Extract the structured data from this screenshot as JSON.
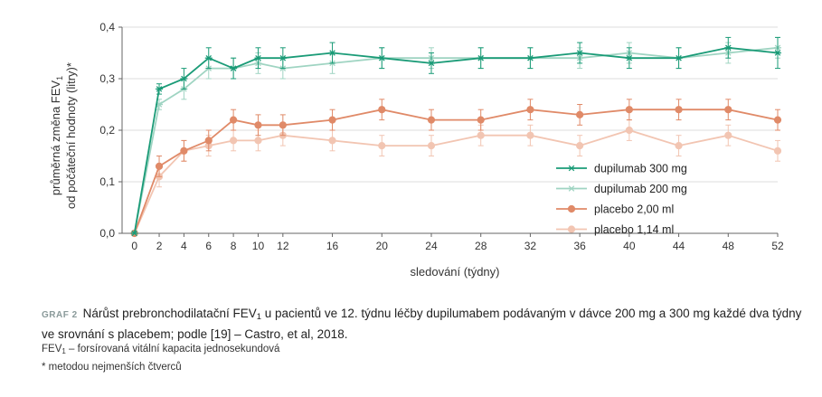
{
  "chart_data": {
    "type": "line",
    "ylabel_line1": "průměrná změna FEV",
    "ylabel_sub": "1",
    "ylabel_line2": "od počáteční hodnoty (litry)*",
    "xlabel": "sledování (týdny)",
    "x_ticks": [
      0,
      2,
      4,
      6,
      8,
      10,
      12,
      16,
      20,
      24,
      28,
      32,
      36,
      40,
      44,
      48,
      52
    ],
    "y_ticks": [
      "0,0",
      "0,1",
      "0,2",
      "0,3",
      "0,4"
    ],
    "xlim": [
      -1,
      52
    ],
    "ylim": [
      0,
      0.4
    ],
    "legend_position": "lower-right",
    "series": [
      {
        "name": "dupilumab 300 mg",
        "color": "#1a9b77",
        "marker": "star",
        "x": [
          0,
          2,
          4,
          6,
          8,
          10,
          12,
          16,
          20,
          24,
          28,
          32,
          36,
          40,
          44,
          48,
          52
        ],
        "y": [
          0.0,
          0.28,
          0.3,
          0.34,
          0.32,
          0.34,
          0.34,
          0.35,
          0.34,
          0.33,
          0.34,
          0.34,
          0.35,
          0.34,
          0.34,
          0.36,
          0.35
        ],
        "err": [
          0,
          0.01,
          0.02,
          0.02,
          0.02,
          0.02,
          0.02,
          0.02,
          0.02,
          0.02,
          0.02,
          0.02,
          0.02,
          0.02,
          0.02,
          0.02,
          0.03
        ]
      },
      {
        "name": "dupilumab 200 mg",
        "color": "#9fd4c2",
        "marker": "star",
        "x": [
          0,
          2,
          4,
          6,
          8,
          10,
          12,
          16,
          20,
          24,
          28,
          32,
          36,
          40,
          44,
          48,
          52
        ],
        "y": [
          0.0,
          0.25,
          0.28,
          0.32,
          0.32,
          0.33,
          0.32,
          0.33,
          0.34,
          0.34,
          0.34,
          0.34,
          0.34,
          0.35,
          0.34,
          0.35,
          0.36
        ],
        "err": [
          0,
          0.01,
          0.02,
          0.02,
          0.02,
          0.02,
          0.02,
          0.02,
          0.02,
          0.02,
          0.02,
          0.02,
          0.02,
          0.02,
          0.02,
          0.02,
          0.02
        ]
      },
      {
        "name": "placebo 2,00 ml",
        "color": "#e08a68",
        "marker": "circle",
        "x": [
          0,
          2,
          4,
          6,
          8,
          10,
          12,
          16,
          20,
          24,
          28,
          32,
          36,
          40,
          44,
          48,
          52
        ],
        "y": [
          0.0,
          0.13,
          0.16,
          0.18,
          0.22,
          0.21,
          0.21,
          0.22,
          0.24,
          0.22,
          0.22,
          0.24,
          0.23,
          0.24,
          0.24,
          0.24,
          0.22
        ],
        "err": [
          0,
          0.02,
          0.02,
          0.02,
          0.02,
          0.02,
          0.02,
          0.02,
          0.02,
          0.02,
          0.02,
          0.02,
          0.02,
          0.02,
          0.02,
          0.02,
          0.02
        ]
      },
      {
        "name": "placebo 1,14 ml",
        "color": "#f2c5b2",
        "marker": "circle",
        "x": [
          0,
          2,
          4,
          6,
          8,
          10,
          12,
          16,
          20,
          24,
          28,
          32,
          36,
          40,
          44,
          48,
          52
        ],
        "y": [
          0.0,
          0.11,
          0.16,
          0.17,
          0.18,
          0.18,
          0.19,
          0.18,
          0.17,
          0.17,
          0.19,
          0.19,
          0.17,
          0.2,
          0.17,
          0.19,
          0.16
        ],
        "err": [
          0,
          0.02,
          0.02,
          0.02,
          0.02,
          0.02,
          0.02,
          0.02,
          0.02,
          0.02,
          0.02,
          0.02,
          0.02,
          0.02,
          0.02,
          0.02,
          0.02
        ]
      }
    ]
  },
  "caption": {
    "tag": "GRAF 2",
    "text_part1": "Nárůst prebronchodilatační FEV",
    "sub": "1",
    "text_part2": " u pacientů ve 12. týdnu léčby dupilumabem podávaným v dávce 200 mg a 300 mg každé dva týdny ve srovnání s placebem; podle [19] – Castro, et al, 2018.",
    "note1_part1": "FEV",
    "note1_sub": "1",
    "note1_part2": " – forsírovaná vitální kapacita jednosekundová",
    "note2": "* metodou nejmenších čtverců"
  }
}
